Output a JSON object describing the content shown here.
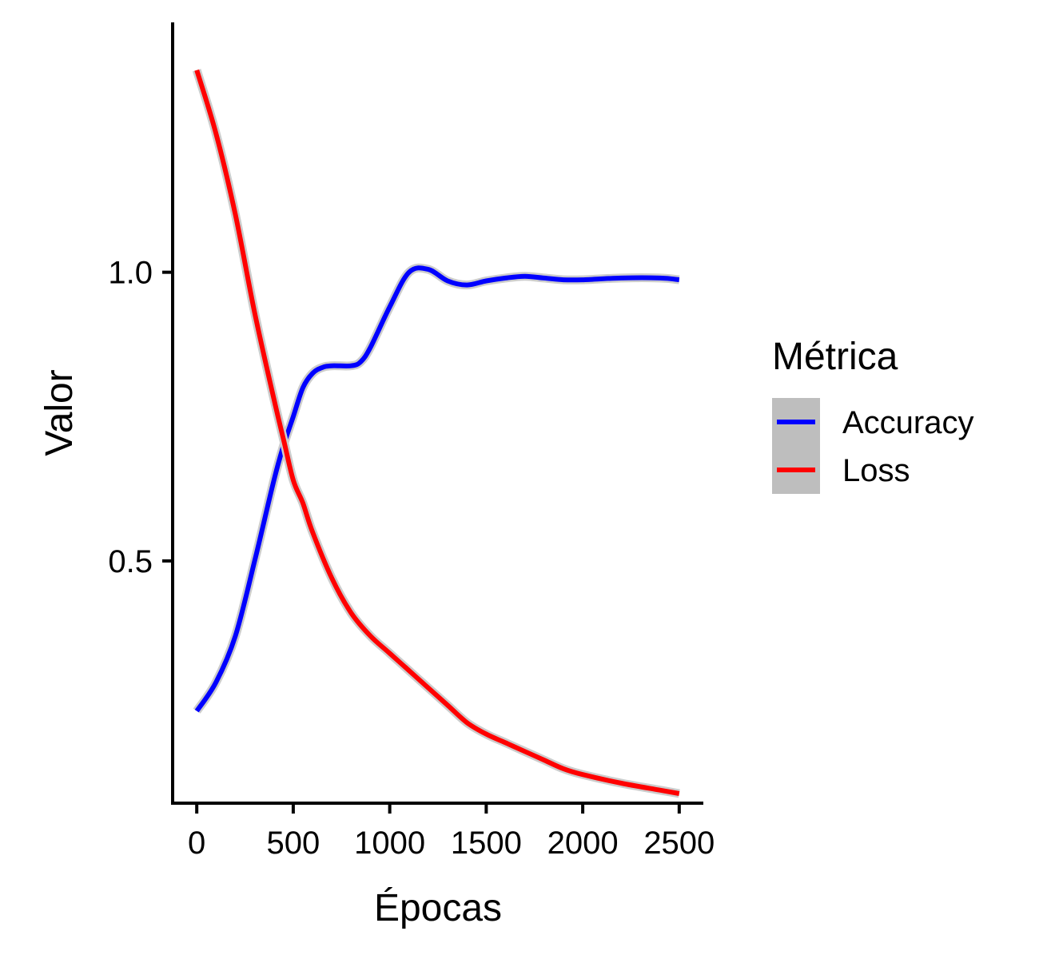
{
  "chart_data": {
    "type": "line",
    "xlabel": "Épocas",
    "ylabel": "Valor",
    "xlim": [
      -125,
      2625
    ],
    "ylim": [
      0.0804,
      1.4328
    ],
    "xticks": [
      0,
      500,
      1000,
      1500,
      2000,
      2500
    ],
    "xtick_labels": [
      "0",
      "500",
      "1000",
      "1500",
      "2000",
      "2500"
    ],
    "yticks": [
      0.5,
      1.0
    ],
    "ytick_labels": [
      "0.5",
      "1.0"
    ],
    "grid": false,
    "legend": {
      "title": "Métrica",
      "placement": "right"
    },
    "series": [
      {
        "name": "Accuracy",
        "color": "#0000ff",
        "x": [
          0,
          100,
          200,
          300,
          400,
          450,
          500,
          550,
          600,
          650,
          700,
          800,
          850,
          900,
          1000,
          1100,
          1200,
          1300,
          1400,
          1500,
          1600,
          1700,
          1800,
          1900,
          2000,
          2200,
          2400,
          2500
        ],
        "y": [
          0.24,
          0.29,
          0.37,
          0.5,
          0.64,
          0.7,
          0.75,
          0.8,
          0.825,
          0.835,
          0.838,
          0.838,
          0.845,
          0.87,
          0.94,
          1.0,
          1.005,
          0.985,
          0.978,
          0.985,
          0.99,
          0.993,
          0.99,
          0.987,
          0.987,
          0.99,
          0.99,
          0.987
        ]
      },
      {
        "name": "Loss",
        "color": "#ff0000",
        "x": [
          0,
          100,
          200,
          300,
          400,
          450,
          500,
          550,
          600,
          700,
          800,
          900,
          1000,
          1100,
          1200,
          1300,
          1400,
          1500,
          1600,
          1700,
          1800,
          1900,
          2000,
          2200,
          2400,
          2500
        ],
        "y": [
          1.35,
          1.24,
          1.1,
          0.93,
          0.78,
          0.71,
          0.64,
          0.6,
          0.55,
          0.47,
          0.41,
          0.37,
          0.34,
          0.31,
          0.28,
          0.25,
          0.22,
          0.2,
          0.185,
          0.17,
          0.155,
          0.14,
          0.13,
          0.115,
          0.103,
          0.097
        ]
      }
    ]
  }
}
